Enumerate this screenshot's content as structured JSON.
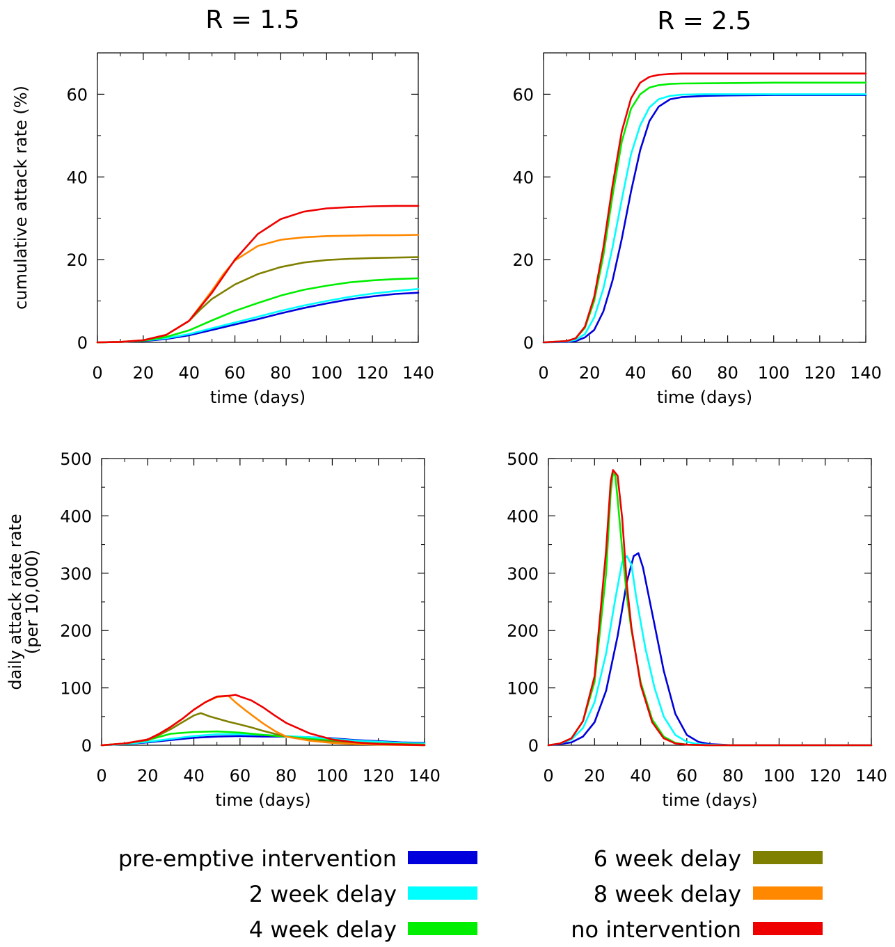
{
  "column_titles": [
    "R = 1.5",
    "R = 2.5"
  ],
  "colors": {
    "pre_emptive": "#0000dd",
    "delay_2wk": "#00ffff",
    "delay_4wk": "#00ee00",
    "delay_6wk": "#808000",
    "delay_8wk": "#ff8800",
    "no_intervention": "#ee0000"
  },
  "legend": [
    {
      "label": "pre-emptive intervention",
      "color": "#0000dd"
    },
    {
      "label": "2 week delay",
      "color": "#00ffff"
    },
    {
      "label": "4 week delay",
      "color": "#00ee00"
    },
    {
      "label": "6 week delay",
      "color": "#808000"
    },
    {
      "label": "8 week delay",
      "color": "#ff8800"
    },
    {
      "label": "no intervention",
      "color": "#ee0000"
    }
  ],
  "chart_data": [
    {
      "id": "cum-r15",
      "type": "line",
      "title": "R = 1.5",
      "xlabel": "time (days)",
      "ylabel": "cumulative attack rate (%)",
      "xlim": [
        0,
        140
      ],
      "ylim": [
        0,
        70
      ],
      "xticks": [
        0,
        20,
        40,
        60,
        80,
        100,
        120,
        140
      ],
      "yticks": [
        0,
        20,
        40,
        60
      ],
      "grid": false,
      "series": [
        {
          "name": "pre-emptive intervention",
          "color": "#0000dd",
          "x": [
            0,
            10,
            20,
            30,
            40,
            50,
            60,
            70,
            80,
            90,
            100,
            110,
            120,
            130,
            140
          ],
          "y": [
            0,
            0.1,
            0.3,
            0.8,
            1.7,
            3.0,
            4.3,
            5.6,
            7.0,
            8.3,
            9.4,
            10.4,
            11.1,
            11.7,
            12.0
          ]
        },
        {
          "name": "2 week delay",
          "color": "#00ffff",
          "x": [
            0,
            10,
            20,
            30,
            40,
            50,
            60,
            70,
            80,
            90,
            100,
            110,
            120,
            130,
            140
          ],
          "y": [
            0,
            0.1,
            0.4,
            1.0,
            2.0,
            3.4,
            4.8,
            6.2,
            7.6,
            8.9,
            10.0,
            11.0,
            11.8,
            12.4,
            12.9
          ]
        },
        {
          "name": "4 week delay",
          "color": "#00ee00",
          "x": [
            0,
            10,
            20,
            30,
            40,
            50,
            60,
            70,
            80,
            90,
            100,
            110,
            120,
            130,
            140
          ],
          "y": [
            0,
            0.1,
            0.4,
            1.3,
            2.9,
            5.3,
            7.6,
            9.5,
            11.3,
            12.7,
            13.7,
            14.5,
            15.0,
            15.3,
            15.5
          ]
        },
        {
          "name": "6 week delay",
          "color": "#808000",
          "x": [
            0,
            10,
            20,
            30,
            40,
            45,
            50,
            60,
            70,
            80,
            90,
            100,
            110,
            120,
            130,
            140
          ],
          "y": [
            0,
            0.1,
            0.5,
            1.8,
            5.2,
            8.0,
            10.5,
            14.0,
            16.5,
            18.2,
            19.3,
            19.9,
            20.2,
            20.4,
            20.5,
            20.6
          ]
        },
        {
          "name": "8 week delay",
          "color": "#ff8800",
          "x": [
            0,
            10,
            20,
            30,
            40,
            50,
            55,
            60,
            70,
            80,
            90,
            100,
            110,
            120,
            130,
            140
          ],
          "y": [
            0,
            0.1,
            0.5,
            1.8,
            5.2,
            12.5,
            16.5,
            19.8,
            23.3,
            24.8,
            25.4,
            25.7,
            25.8,
            25.9,
            25.9,
            26.0
          ]
        },
        {
          "name": "no intervention",
          "color": "#ee0000",
          "x": [
            0,
            10,
            20,
            30,
            40,
            50,
            60,
            70,
            80,
            90,
            100,
            110,
            120,
            130,
            140
          ],
          "y": [
            0,
            0.1,
            0.5,
            1.8,
            5.2,
            12.0,
            20.0,
            26.2,
            29.8,
            31.6,
            32.4,
            32.7,
            32.9,
            33.0,
            33.0
          ]
        }
      ]
    },
    {
      "id": "cum-r25",
      "type": "line",
      "title": "R = 2.5",
      "xlabel": "time (days)",
      "ylabel": "",
      "xlim": [
        0,
        140
      ],
      "ylim": [
        0,
        70
      ],
      "xticks": [
        0,
        20,
        40,
        60,
        80,
        100,
        120,
        140
      ],
      "yticks": [
        0,
        20,
        40,
        60
      ],
      "grid": false,
      "series": [
        {
          "name": "pre-emptive intervention",
          "color": "#0000dd",
          "x": [
            0,
            10,
            14,
            18,
            22,
            26,
            30,
            34,
            38,
            42,
            46,
            50,
            55,
            60,
            70,
            80,
            100,
            120,
            140
          ],
          "y": [
            0,
            0.1,
            0.3,
            1.2,
            3.0,
            7.5,
            15.0,
            25.0,
            36.5,
            46.5,
            53.5,
            57.0,
            58.8,
            59.3,
            59.6,
            59.7,
            59.8,
            59.8,
            59.8
          ]
        },
        {
          "name": "2 week delay",
          "color": "#00ffff",
          "x": [
            0,
            10,
            14,
            18,
            22,
            26,
            30,
            34,
            38,
            42,
            46,
            50,
            55,
            60,
            70,
            80,
            100,
            120,
            140
          ],
          "y": [
            0,
            0.2,
            0.6,
            2.0,
            6.0,
            13.0,
            23.0,
            34.5,
            45.5,
            52.5,
            56.8,
            58.8,
            59.6,
            59.9,
            60.0,
            60.0,
            60.0,
            60.0,
            60.0
          ]
        },
        {
          "name": "4 week delay",
          "color": "#00ee00",
          "x": [
            0,
            10,
            14,
            18,
            22,
            26,
            30,
            34,
            38,
            42,
            46,
            50,
            55,
            60,
            80,
            100,
            120,
            140
          ],
          "y": [
            0,
            0.3,
            1.0,
            3.5,
            10.0,
            21.0,
            35.5,
            48.5,
            56.5,
            60.0,
            61.6,
            62.2,
            62.5,
            62.6,
            62.7,
            62.8,
            62.8,
            62.8
          ]
        },
        {
          "name": "no intervention",
          "color": "#ee0000",
          "x": [
            0,
            10,
            14,
            18,
            22,
            26,
            30,
            34,
            38,
            42,
            46,
            50,
            55,
            60,
            80,
            100,
            120,
            140
          ],
          "y": [
            0,
            0.3,
            1.0,
            3.8,
            11.0,
            23.0,
            38.0,
            51.0,
            59.0,
            62.8,
            64.2,
            64.7,
            64.9,
            65.0,
            65.0,
            65.0,
            65.0,
            65.0
          ]
        }
      ]
    },
    {
      "id": "daily-r15",
      "type": "line",
      "title": "",
      "xlabel": "time (days)",
      "ylabel": "daily attack rate rate",
      "ylabel2": "(per 10,000)",
      "xlim": [
        0,
        140
      ],
      "ylim": [
        0,
        500
      ],
      "xticks": [
        0,
        20,
        40,
        60,
        80,
        100,
        120,
        140
      ],
      "yticks": [
        0,
        100,
        200,
        300,
        400,
        500
      ],
      "grid": false,
      "series": [
        {
          "name": "pre-emptive intervention",
          "color": "#0000dd",
          "x": [
            0,
            10,
            20,
            30,
            40,
            50,
            60,
            70,
            80,
            90,
            100,
            110,
            120,
            130,
            140
          ],
          "y": [
            0,
            2,
            5,
            9,
            13,
            15,
            16,
            15,
            15,
            14,
            12,
            9,
            7,
            5,
            4
          ]
        },
        {
          "name": "2 week delay",
          "color": "#00ffff",
          "x": [
            0,
            10,
            20,
            30,
            40,
            50,
            60,
            70,
            80,
            90,
            100,
            110,
            120,
            130,
            140
          ],
          "y": [
            0,
            2,
            6,
            11,
            16,
            19,
            19,
            18,
            16,
            14,
            11,
            8,
            6,
            4,
            3
          ]
        },
        {
          "name": "4 week delay",
          "color": "#00ee00",
          "x": [
            0,
            10,
            20,
            30,
            40,
            50,
            60,
            70,
            80,
            90,
            100,
            110,
            120,
            130,
            140
          ],
          "y": [
            0,
            3,
            9,
            20,
            23,
            24,
            22,
            18,
            15,
            11,
            8,
            5,
            3,
            2,
            1
          ]
        },
        {
          "name": "6 week delay",
          "color": "#808000",
          "x": [
            0,
            10,
            20,
            25,
            30,
            35,
            40,
            43,
            47,
            55,
            60,
            65,
            70,
            80,
            90,
            100,
            110,
            120,
            130,
            140
          ],
          "y": [
            0,
            3,
            9,
            18,
            28,
            40,
            52,
            56,
            50,
            41,
            36,
            31,
            25,
            15,
            9,
            6,
            4,
            3,
            2,
            1
          ]
        },
        {
          "name": "8 week delay",
          "color": "#ff8800",
          "x": [
            0,
            10,
            20,
            25,
            30,
            35,
            40,
            45,
            50,
            55,
            58,
            62,
            66,
            70,
            75,
            80,
            90,
            100,
            110,
            120,
            140
          ],
          "y": [
            0,
            3,
            10,
            20,
            32,
            46,
            62,
            75,
            84,
            86,
            75,
            62,
            50,
            38,
            25,
            15,
            8,
            4,
            2,
            1,
            0
          ]
        },
        {
          "name": "no intervention",
          "color": "#ee0000",
          "x": [
            0,
            10,
            20,
            25,
            30,
            35,
            40,
            45,
            50,
            55,
            58,
            60,
            65,
            70,
            75,
            80,
            85,
            90,
            100,
            110,
            120,
            130,
            140
          ],
          "y": [
            0,
            3,
            10,
            20,
            32,
            46,
            62,
            75,
            85,
            86,
            88,
            85,
            78,
            66,
            52,
            39,
            30,
            21,
            10,
            5,
            2,
            1,
            0
          ]
        }
      ]
    },
    {
      "id": "daily-r25",
      "type": "line",
      "title": "",
      "xlabel": "time (days)",
      "ylabel": "",
      "xlim": [
        0,
        140
      ],
      "ylim": [
        0,
        500
      ],
      "xticks": [
        0,
        20,
        40,
        60,
        80,
        100,
        120,
        140
      ],
      "yticks": [
        0,
        100,
        200,
        300,
        400,
        500
      ],
      "grid": false,
      "series": [
        {
          "name": "pre-emptive intervention",
          "color": "#0000dd",
          "x": [
            0,
            5,
            10,
            15,
            20,
            25,
            30,
            34,
            37,
            39,
            41,
            43,
            46,
            50,
            55,
            60,
            65,
            70,
            75,
            80,
            100,
            140
          ],
          "y": [
            0,
            2,
            5,
            15,
            40,
            95,
            190,
            285,
            330,
            335,
            310,
            270,
            210,
            130,
            55,
            18,
            6,
            2,
            1,
            0,
            0,
            0
          ]
        },
        {
          "name": "2 week delay",
          "color": "#00ffff",
          "x": [
            0,
            5,
            10,
            15,
            20,
            25,
            29,
            32,
            34,
            36,
            38,
            42,
            46,
            50,
            55,
            60,
            65,
            70,
            80,
            140
          ],
          "y": [
            0,
            3,
            10,
            30,
            75,
            160,
            255,
            320,
            330,
            315,
            260,
            170,
            100,
            50,
            18,
            6,
            2,
            1,
            0,
            0
          ]
        },
        {
          "name": "4 week delay",
          "color": "#00ee00",
          "x": [
            0,
            5,
            10,
            15,
            20,
            25,
            27,
            28,
            29,
            30,
            32,
            34,
            36,
            40,
            45,
            50,
            55,
            60,
            70,
            140
          ],
          "y": [
            0,
            3,
            12,
            42,
            110,
            300,
            440,
            475,
            470,
            430,
            340,
            260,
            200,
            110,
            45,
            15,
            4,
            1,
            0,
            0
          ]
        },
        {
          "name": "no intervention",
          "color": "#ee0000",
          "x": [
            0,
            5,
            10,
            15,
            20,
            25,
            27,
            28,
            29,
            30,
            32,
            34,
            36,
            40,
            45,
            50,
            55,
            60,
            70,
            140
          ],
          "y": [
            0,
            3,
            12,
            42,
            120,
            340,
            460,
            480,
            475,
            470,
            395,
            280,
            205,
            105,
            40,
            12,
            3,
            1,
            0,
            0
          ]
        }
      ]
    }
  ]
}
